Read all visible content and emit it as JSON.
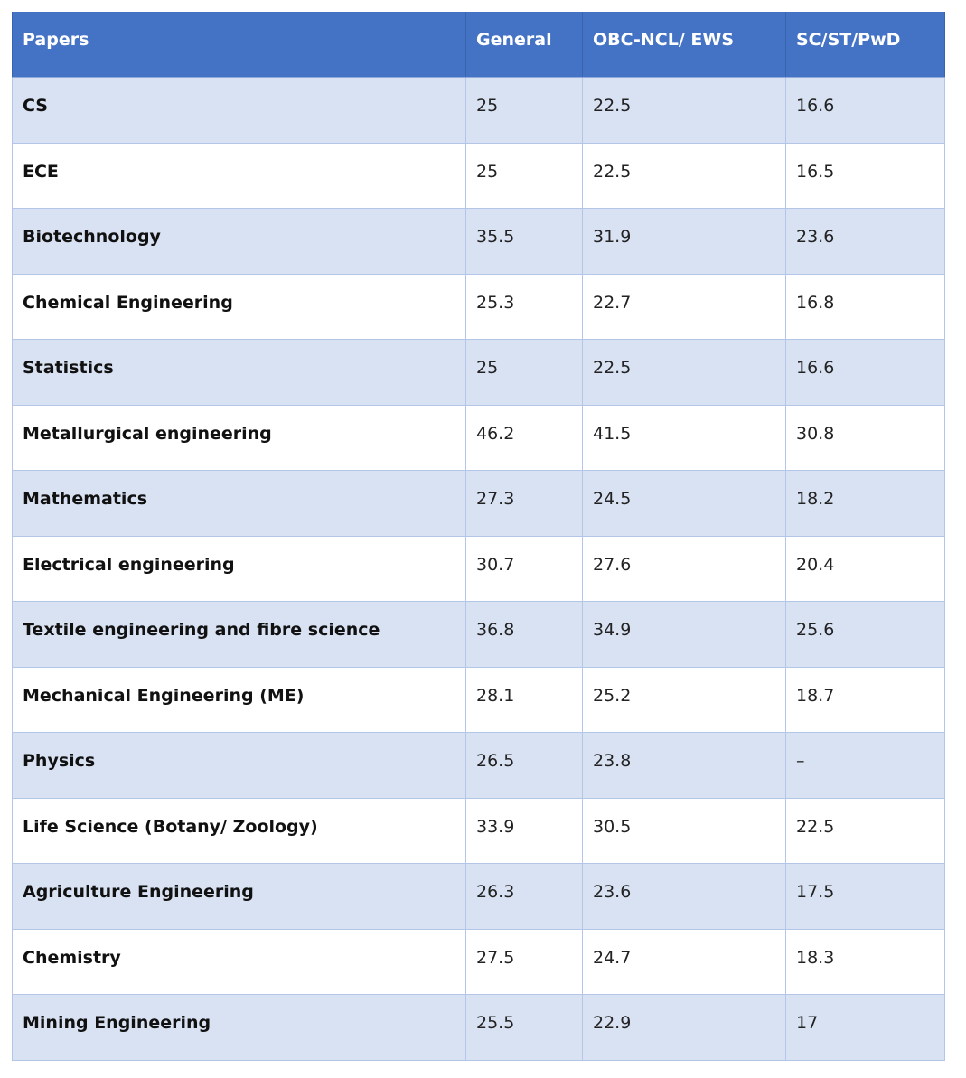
{
  "table": {
    "headers": [
      "Papers",
      "General",
      "OBC-NCL/ EWS",
      "SC/ST/PwD"
    ],
    "rows": [
      [
        "CS",
        "25",
        "22.5",
        "16.6"
      ],
      [
        "ECE",
        "25",
        "22.5",
        "16.5"
      ],
      [
        "Biotechnology",
        "35.5",
        "31.9",
        "23.6"
      ],
      [
        "Chemical Engineering",
        "25.3",
        "22.7",
        "16.8"
      ],
      [
        "Statistics",
        "25",
        "22.5",
        "16.6"
      ],
      [
        "Metallurgical engineering",
        "46.2",
        "41.5",
        "30.8"
      ],
      [
        "Mathematics",
        "27.3",
        "24.5",
        "18.2"
      ],
      [
        "Electrical engineering",
        "30.7",
        "27.6",
        "20.4"
      ],
      [
        "Textile engineering and fibre science",
        "36.8",
        "34.9",
        "25.6"
      ],
      [
        "Mechanical Engineering (ME)",
        "28.1",
        "25.2",
        "18.7"
      ],
      [
        "Physics",
        "26.5",
        "23.8",
        "–"
      ],
      [
        "Life Science (Botany/ Zoology)",
        "33.9",
        "30.5",
        "22.5"
      ],
      [
        "Agriculture Engineering",
        "26.3",
        "23.6",
        "17.5"
      ],
      [
        "Chemistry",
        "27.5",
        "24.7",
        "18.3"
      ],
      [
        "Mining Engineering",
        "25.5",
        "22.9",
        "17"
      ]
    ]
  },
  "colors": {
    "header_background": "#4472c4",
    "header_text": "#ffffff",
    "band_row": "#d9e2f3",
    "plain_row": "#ffffff",
    "border": "#b4c6e7"
  }
}
